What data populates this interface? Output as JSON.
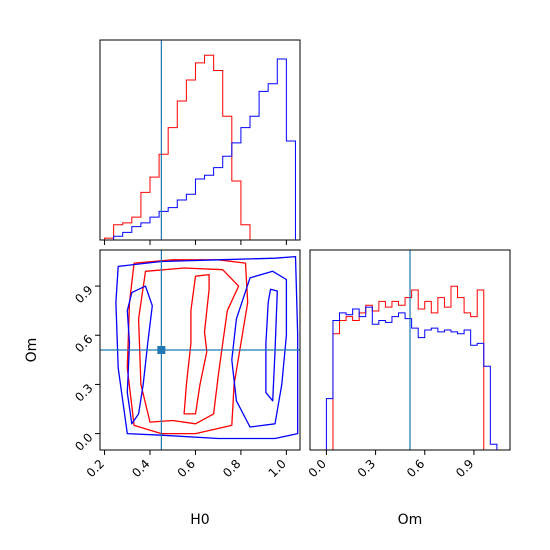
{
  "chart_data": [
    {
      "panel": "H0 marginal",
      "type": "histogram",
      "xlim": [
        0.18,
        1.06
      ],
      "bins_x": [
        0.16,
        0.2,
        0.24,
        0.28,
        0.32,
        0.36,
        0.4,
        0.44,
        0.48,
        0.52,
        0.56,
        0.6,
        0.64,
        0.68,
        0.72,
        0.76,
        0.8,
        0.84,
        0.88,
        0.92,
        0.96,
        1.0,
        1.04
      ],
      "series": [
        {
          "color": "#ff0000",
          "values": [
            0.0,
            0.01,
            0.08,
            0.09,
            0.12,
            0.25,
            0.33,
            0.45,
            0.59,
            0.73,
            0.84,
            0.93,
            0.97,
            0.89,
            0.65,
            0.31,
            0.08,
            0.0,
            0.0,
            0.0,
            0.0,
            0.0
          ]
        },
        {
          "color": "#0000ff",
          "values": [
            0.0,
            0.0,
            0.02,
            0.04,
            0.07,
            0.09,
            0.12,
            0.15,
            0.17,
            0.21,
            0.24,
            0.32,
            0.34,
            0.38,
            0.44,
            0.51,
            0.59,
            0.65,
            0.78,
            0.82,
            0.95,
            0.52
          ]
        }
      ],
      "truth_x": 0.45
    },
    {
      "panel": "H0 vs Om",
      "type": "contour",
      "xlabel": "H0",
      "ylabel": "Om",
      "xlim": [
        0.18,
        1.06
      ],
      "ylim": [
        -0.1,
        1.12
      ],
      "xticks": [
        "0.2",
        "0.4",
        "0.6",
        "0.8",
        "1.0"
      ],
      "yticks": [
        "0.0",
        "0.3",
        "0.6",
        "0.9"
      ],
      "contours": [
        {
          "color": "#ff0000",
          "points": [
            [
              0.33,
              1.04
            ],
            [
              0.5,
              1.06
            ],
            [
              0.7,
              1.06
            ],
            [
              0.82,
              1.04
            ],
            [
              0.83,
              0.8
            ],
            [
              0.8,
              0.55
            ],
            [
              0.77,
              0.3
            ],
            [
              0.76,
              0.05
            ],
            [
              0.6,
              0.0
            ],
            [
              0.45,
              0.0
            ],
            [
              0.33,
              0.05
            ],
            [
              0.3,
              0.4
            ],
            [
              0.31,
              0.8
            ]
          ]
        },
        {
          "color": "#ff0000",
          "points": [
            [
              0.38,
              0.99
            ],
            [
              0.55,
              1.01
            ],
            [
              0.72,
              1.0
            ],
            [
              0.79,
              0.9
            ],
            [
              0.74,
              0.75
            ],
            [
              0.72,
              0.55
            ],
            [
              0.7,
              0.35
            ],
            [
              0.68,
              0.12
            ],
            [
              0.6,
              0.06
            ],
            [
              0.5,
              0.08
            ],
            [
              0.4,
              0.07
            ],
            [
              0.36,
              0.3
            ],
            [
              0.35,
              0.7
            ]
          ]
        },
        {
          "color": "#ff0000",
          "points": [
            [
              0.6,
              0.96
            ],
            [
              0.66,
              0.97
            ],
            [
              0.66,
              0.88
            ],
            [
              0.65,
              0.75
            ],
            [
              0.64,
              0.62
            ],
            [
              0.65,
              0.5
            ],
            [
              0.62,
              0.3
            ],
            [
              0.6,
              0.12
            ],
            [
              0.55,
              0.12
            ],
            [
              0.56,
              0.3
            ],
            [
              0.58,
              0.55
            ],
            [
              0.58,
              0.75
            ]
          ]
        },
        {
          "color": "#0000ff",
          "points": [
            [
              0.26,
              1.02
            ],
            [
              0.45,
              1.05
            ],
            [
              0.7,
              1.06
            ],
            [
              0.95,
              1.07
            ],
            [
              1.04,
              1.08
            ],
            [
              1.05,
              0.6
            ],
            [
              1.05,
              0.0
            ],
            [
              0.95,
              -0.03
            ],
            [
              0.7,
              -0.03
            ],
            [
              0.45,
              -0.01
            ],
            [
              0.3,
              0.0
            ],
            [
              0.26,
              0.4
            ],
            [
              0.25,
              0.8
            ]
          ]
        },
        {
          "color": "#0000ff",
          "points": [
            [
              0.32,
              0.86
            ],
            [
              0.38,
              0.9
            ],
            [
              0.41,
              0.78
            ],
            [
              0.39,
              0.55
            ],
            [
              0.37,
              0.3
            ],
            [
              0.35,
              0.12
            ],
            [
              0.32,
              0.06
            ],
            [
              0.3,
              0.25
            ],
            [
              0.31,
              0.55
            ],
            [
              0.3,
              0.75
            ]
          ]
        },
        {
          "color": "#0000ff",
          "points": [
            [
              0.84,
              0.95
            ],
            [
              0.94,
              0.99
            ],
            [
              1.0,
              0.94
            ],
            [
              1.0,
              0.6
            ],
            [
              0.98,
              0.3
            ],
            [
              0.95,
              0.06
            ],
            [
              0.84,
              0.04
            ],
            [
              0.78,
              0.2
            ],
            [
              0.76,
              0.45
            ],
            [
              0.78,
              0.7
            ]
          ]
        },
        {
          "color": "#0000ff",
          "points": [
            [
              0.93,
              0.88
            ],
            [
              0.96,
              0.87
            ],
            [
              0.95,
              0.5
            ],
            [
              0.94,
              0.2
            ],
            [
              0.91,
              0.25
            ],
            [
              0.91,
              0.55
            ],
            [
              0.92,
              0.8
            ]
          ]
        }
      ],
      "truth_x": 0.45,
      "truth_y": 0.51
    },
    {
      "panel": "Om marginal",
      "type": "histogram",
      "xlabel": "Om",
      "xlim": [
        -0.1,
        1.12
      ],
      "xticks": [
        "0.0",
        "0.3",
        "0.6",
        "0.9"
      ],
      "bins_x": [
        -0.04,
        0.0,
        0.04,
        0.08,
        0.12,
        0.16,
        0.2,
        0.24,
        0.28,
        0.32,
        0.36,
        0.4,
        0.44,
        0.48,
        0.52,
        0.56,
        0.6,
        0.64,
        0.68,
        0.72,
        0.76,
        0.8,
        0.84,
        0.88,
        0.92,
        0.96,
        1.0,
        1.04,
        1.08
      ],
      "series": [
        {
          "color": "#ff0000",
          "values": [
            0.0,
            0.0,
            0.61,
            0.68,
            0.7,
            0.68,
            0.72,
            0.76,
            0.73,
            0.78,
            0.75,
            0.78,
            0.76,
            0.8,
            0.84,
            0.74,
            0.78,
            0.72,
            0.8,
            0.75,
            0.86,
            0.8,
            0.72,
            0.7,
            0.84,
            0.0,
            0.0,
            0.0
          ]
        },
        {
          "color": "#0000ff",
          "values": [
            0.0,
            0.27,
            0.68,
            0.72,
            0.71,
            0.74,
            0.7,
            0.75,
            0.66,
            0.68,
            0.67,
            0.7,
            0.72,
            0.69,
            0.64,
            0.59,
            0.63,
            0.64,
            0.62,
            0.63,
            0.62,
            0.61,
            0.63,
            0.55,
            0.56,
            0.44,
            0.03,
            0.0
          ]
        }
      ],
      "truth_x": 0.51
    }
  ]
}
